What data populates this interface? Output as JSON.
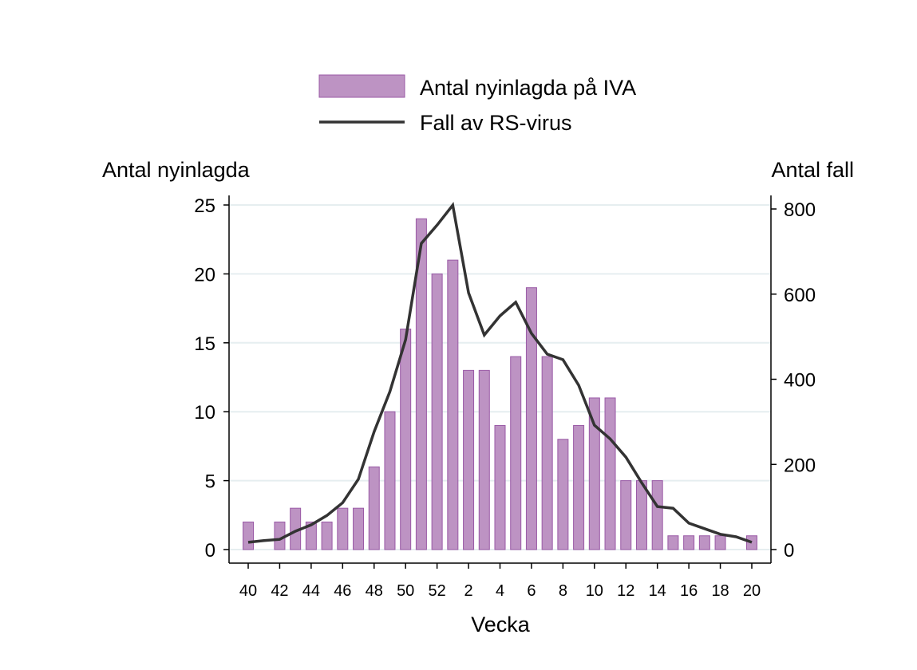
{
  "chart_data": {
    "type": "bar+line",
    "title": "",
    "xlabel": "Vecka",
    "ylabel_left": "Antal nyinlagda",
    "ylabel_right": "Antal fall",
    "ylim_left": [
      0,
      25
    ],
    "ylim_right": [
      0,
      800
    ],
    "yticks_left": [
      0,
      5,
      10,
      15,
      20,
      25
    ],
    "yticks_right": [
      0,
      200,
      400,
      600,
      800
    ],
    "grid": true,
    "legend_position": "top",
    "categories": [
      "40",
      "41",
      "42",
      "43",
      "44",
      "45",
      "46",
      "47",
      "48",
      "49",
      "50",
      "51",
      "52",
      "1",
      "2",
      "3",
      "4",
      "5",
      "6",
      "7",
      "8",
      "9",
      "10",
      "11",
      "12",
      "13",
      "14",
      "15",
      "16",
      "17",
      "18",
      "19",
      "20"
    ],
    "xtick_labels": [
      "40",
      "42",
      "44",
      "46",
      "48",
      "50",
      "52",
      "2",
      "4",
      "6",
      "8",
      "10",
      "12",
      "14",
      "16",
      "18",
      "20"
    ],
    "series": [
      {
        "name": "Antal nyinlagda på IVA",
        "type": "bar",
        "axis": "left",
        "color": "#bd93c3",
        "values": [
          2,
          0,
          2,
          3,
          2,
          2,
          3,
          3,
          6,
          10,
          16,
          24,
          20,
          21,
          13,
          13,
          9,
          14,
          19,
          14,
          8,
          9,
          11,
          11,
          5,
          5,
          5,
          1,
          1,
          1,
          1,
          0,
          1
        ]
      },
      {
        "name": "Fall av RS-virus",
        "type": "line",
        "axis": "right",
        "color": "#333333",
        "values": [
          17,
          21,
          24,
          43,
          58,
          80,
          110,
          165,
          277,
          371,
          493,
          719,
          762,
          809,
          603,
          504,
          549,
          581,
          508,
          459,
          446,
          386,
          292,
          260,
          217,
          157,
          101,
          97,
          62,
          49,
          36,
          30,
          17
        ]
      }
    ]
  }
}
